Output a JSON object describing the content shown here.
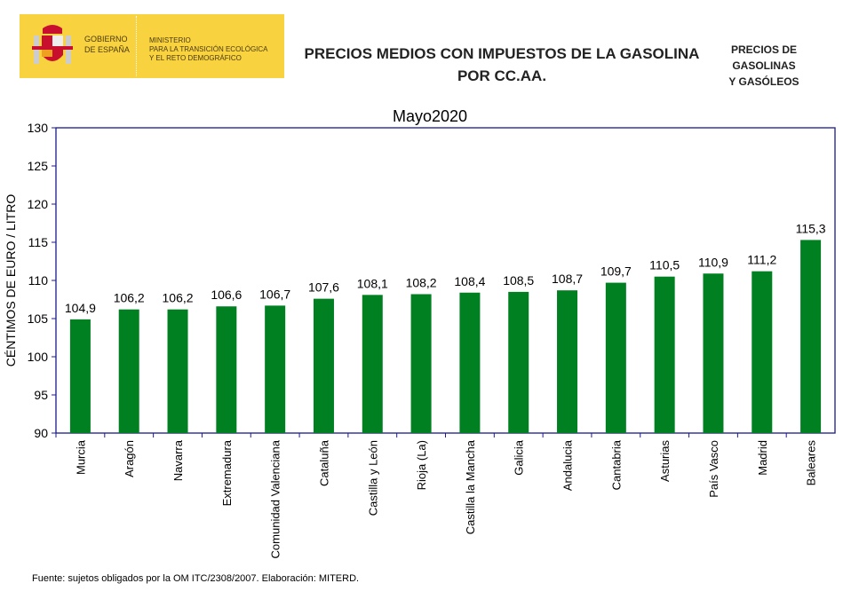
{
  "header": {
    "gov_line1": "GOBIERNO",
    "gov_line2": "DE ESPAÑA",
    "ministry_line1": "MINISTERIO",
    "ministry_line2": "PARA LA TRANSICIÓN ECOLÓGICA",
    "ministry_line3": "Y EL RETO DEMOGRÁFICO",
    "title_line1": "PRECIOS MEDIOS CON IMPUESTOS DE LA GASOLINA",
    "title_line2": "POR CC.AA.",
    "side_line1": "PRECIOS DE",
    "side_line2": "GASOLINAS",
    "side_line3": "Y GASÓLEOS",
    "banner_color": "#f9d33f"
  },
  "footer": {
    "source": "Fuente: sujetos obligados por la OM   ITC/2308/2007.      Elaboración: MITERD."
  },
  "chart_data": {
    "type": "bar",
    "title": "Mayo2020",
    "xlabel": "",
    "ylabel": "CÉNTIMOS DE EURO / LITRO",
    "ylim": [
      90,
      130
    ],
    "yticks": [
      90,
      95,
      100,
      105,
      110,
      115,
      120,
      125,
      130
    ],
    "categories": [
      "Murcia",
      "Aragón",
      "Navarra",
      "Extremadura",
      "Comunidad Valenciana",
      "Cataluña",
      "Castilla y León",
      "Rioja (La)",
      "Castilla la Mancha",
      "Galicia",
      "Andalucia",
      "Cantabria",
      "Asturias",
      "País Vasco",
      "Madrid",
      "Baleares"
    ],
    "values": [
      104.9,
      106.2,
      106.2,
      106.6,
      106.7,
      107.6,
      108.1,
      108.2,
      108.4,
      108.5,
      108.7,
      109.7,
      110.5,
      110.9,
      111.2,
      115.3
    ],
    "data_labels": [
      "104,9",
      "106,2",
      "106,2",
      "106,6",
      "106,7",
      "107,6",
      "108,1",
      "108,2",
      "108,4",
      "108,5",
      "108,7",
      "109,7",
      "110,5",
      "110,9",
      "111,2",
      "115,3"
    ],
    "grid": false,
    "bar_color": "#008021",
    "axis_color": "#1a1a8c"
  }
}
